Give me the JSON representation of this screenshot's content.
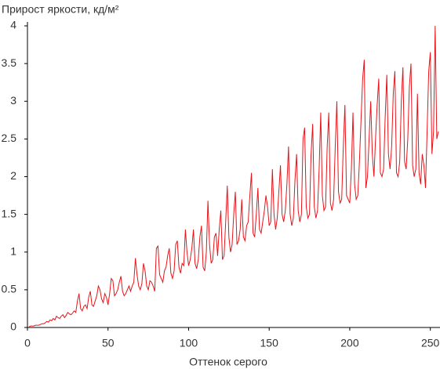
{
  "chart_data": {
    "type": "line",
    "title": "Прирост яркости, кд/м²",
    "x_label": "Оттенок серого",
    "xlim": [
      0,
      256
    ],
    "xticks": [
      0,
      50,
      100,
      150,
      200,
      250
    ],
    "ylim": [
      0,
      4
    ],
    "yticks": [
      0,
      0.5,
      1,
      1.5,
      2,
      2.5,
      3,
      3.5,
      4
    ],
    "grid": false,
    "x": [
      1,
      2,
      3,
      4,
      5,
      6,
      7,
      8,
      9,
      10,
      11,
      12,
      13,
      14,
      15,
      16,
      17,
      18,
      19,
      20,
      21,
      22,
      23,
      24,
      25,
      26,
      27,
      28,
      29,
      30,
      31,
      32,
      33,
      34,
      35,
      36,
      37,
      38,
      39,
      40,
      41,
      42,
      43,
      44,
      45,
      46,
      47,
      48,
      49,
      50,
      51,
      52,
      53,
      54,
      55,
      56,
      57,
      58,
      59,
      60,
      61,
      62,
      63,
      64,
      65,
      66,
      67,
      68,
      69,
      70,
      71,
      72,
      73,
      74,
      75,
      76,
      77,
      78,
      79,
      80,
      81,
      82,
      83,
      84,
      85,
      86,
      87,
      88,
      89,
      90,
      91,
      92,
      93,
      94,
      95,
      96,
      97,
      98,
      99,
      100,
      101,
      102,
      103,
      104,
      105,
      106,
      107,
      108,
      109,
      110,
      111,
      112,
      113,
      114,
      115,
      116,
      117,
      118,
      119,
      120,
      121,
      122,
      123,
      124,
      125,
      126,
      127,
      128,
      129,
      130,
      131,
      132,
      133,
      134,
      135,
      136,
      137,
      138,
      139,
      140,
      141,
      142,
      143,
      144,
      145,
      146,
      147,
      148,
      149,
      150,
      151,
      152,
      153,
      154,
      155,
      156,
      157,
      158,
      159,
      160,
      161,
      162,
      163,
      164,
      165,
      166,
      167,
      168,
      169,
      170,
      171,
      172,
      173,
      174,
      175,
      176,
      177,
      178,
      179,
      180,
      181,
      182,
      183,
      184,
      185,
      186,
      187,
      188,
      189,
      190,
      191,
      192,
      193,
      194,
      195,
      196,
      197,
      198,
      199,
      200,
      201,
      202,
      203,
      204,
      205,
      206,
      207,
      208,
      209,
      210,
      211,
      212,
      213,
      214,
      215,
      216,
      217,
      218,
      219,
      220,
      221,
      222,
      223,
      224,
      225,
      226,
      227,
      228,
      229,
      230,
      231,
      232,
      233,
      234,
      235,
      236,
      237,
      238,
      239,
      240,
      241,
      242,
      243,
      244,
      245,
      246,
      247,
      248,
      249,
      250,
      251,
      252,
      253,
      254,
      255
    ],
    "series": [
      {
        "color": "#e8141a",
        "values": [
          0.01,
          0.02,
          0.02,
          0.02,
          0.03,
          0.03,
          0.03,
          0.04,
          0.05,
          0.05,
          0.06,
          0.08,
          0.07,
          0.1,
          0.09,
          0.12,
          0.1,
          0.15,
          0.13,
          0.12,
          0.15,
          0.17,
          0.13,
          0.16,
          0.2,
          0.18,
          0.17,
          0.19,
          0.22,
          0.2,
          0.35,
          0.45,
          0.25,
          0.22,
          0.28,
          0.3,
          0.25,
          0.4,
          0.48,
          0.3,
          0.28,
          0.35,
          0.42,
          0.55,
          0.5,
          0.38,
          0.33,
          0.45,
          0.4,
          0.3,
          0.45,
          0.65,
          0.62,
          0.42,
          0.45,
          0.5,
          0.6,
          0.68,
          0.48,
          0.42,
          0.45,
          0.5,
          0.55,
          0.48,
          0.55,
          0.6,
          0.92,
          0.7,
          0.55,
          0.5,
          0.58,
          0.85,
          0.75,
          0.55,
          0.5,
          0.62,
          0.6,
          0.55,
          0.48,
          1.05,
          1.08,
          0.7,
          0.65,
          0.6,
          0.75,
          0.8,
          0.95,
          1.05,
          0.72,
          0.65,
          0.75,
          1.1,
          1.15,
          0.8,
          0.72,
          0.85,
          0.82,
          1.3,
          1.0,
          0.82,
          0.9,
          1.05,
          1.3,
          0.85,
          0.78,
          0.9,
          1.2,
          1.35,
          0.8,
          0.75,
          1.0,
          1.68,
          1.1,
          0.85,
          0.9,
          1.2,
          1.25,
          0.95,
          1.3,
          1.55,
          0.9,
          0.95,
          1.4,
          1.88,
          1.2,
          1.0,
          1.1,
          1.5,
          1.8,
          1.1,
          1.15,
          1.3,
          1.7,
          1.2,
          1.15,
          1.35,
          1.4,
          1.75,
          2.05,
          1.25,
          1.2,
          1.5,
          1.85,
          1.3,
          1.25,
          1.4,
          1.55,
          1.75,
          1.6,
          1.35,
          1.4,
          2.1,
          1.5,
          1.3,
          1.45,
          1.8,
          2.15,
          1.5,
          1.4,
          1.55,
          1.9,
          2.4,
          1.5,
          1.35,
          1.45,
          1.95,
          2.3,
          1.55,
          1.4,
          1.5,
          2.5,
          2.65,
          1.6,
          1.45,
          1.5,
          2.3,
          2.7,
          1.6,
          1.45,
          1.55,
          2.1,
          2.85,
          1.75,
          1.55,
          1.6,
          2.4,
          2.85,
          1.65,
          1.55,
          1.7,
          2.4,
          3.0,
          1.8,
          1.65,
          1.7,
          2.4,
          2.95,
          1.75,
          1.7,
          1.65,
          2.1,
          2.85,
          1.9,
          1.7,
          1.75,
          2.2,
          2.75,
          3.3,
          3.55,
          1.85,
          2.0,
          2.5,
          3.0,
          2.3,
          2.0,
          2.5,
          2.95,
          3.3,
          2.05,
          2.0,
          2.1,
          2.8,
          3.35,
          2.3,
          2.1,
          2.4,
          3.1,
          3.4,
          2.05,
          2.0,
          2.2,
          3.0,
          3.45,
          2.2,
          2.1,
          2.5,
          3.2,
          3.5,
          2.15,
          2.0,
          2.1,
          3.1,
          2.05,
          1.9,
          2.3,
          2.15,
          1.85,
          2.6,
          3.4,
          3.65,
          2.3,
          2.6,
          4.0,
          2.5,
          2.6
        ]
      }
    ]
  }
}
